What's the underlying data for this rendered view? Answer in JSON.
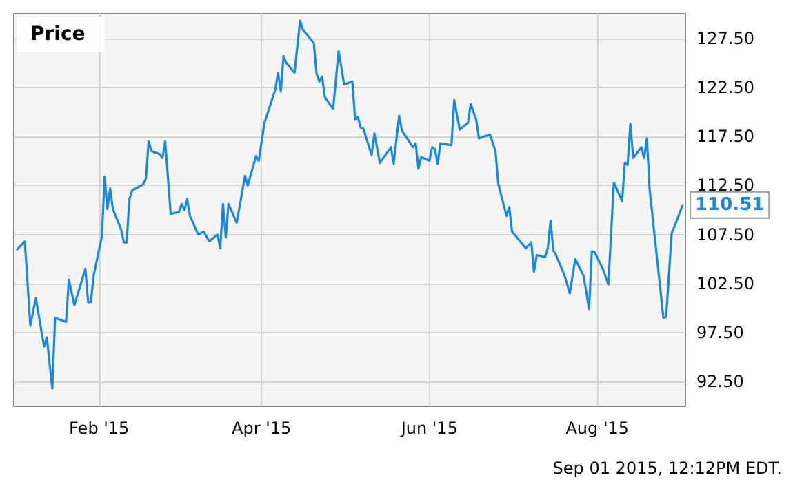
{
  "chart_data": {
    "type": "line",
    "title": "Price",
    "annotations": [
      "Sep 01 2015, 12:12PM EDT."
    ],
    "x": [
      "2015-01-02",
      "2015-01-05",
      "2015-01-07",
      "2015-01-09",
      "2015-01-12",
      "2015-01-13",
      "2015-01-15",
      "2015-01-16",
      "2015-01-20",
      "2015-01-21",
      "2015-01-23",
      "2015-01-27",
      "2015-01-28",
      "2015-01-29",
      "2015-01-30",
      "2015-02-02",
      "2015-02-03",
      "2015-02-04",
      "2015-02-05",
      "2015-02-06",
      "2015-02-09",
      "2015-02-10",
      "2015-02-11",
      "2015-02-12",
      "2015-02-13",
      "2015-02-17",
      "2015-02-18",
      "2015-02-19",
      "2015-02-20",
      "2015-02-23",
      "2015-02-24",
      "2015-02-25",
      "2015-02-27",
      "2015-03-02",
      "2015-03-03",
      "2015-03-04",
      "2015-03-05",
      "2015-03-06",
      "2015-03-09",
      "2015-03-11",
      "2015-03-13",
      "2015-03-16",
      "2015-03-17",
      "2015-03-18",
      "2015-03-19",
      "2015-03-20",
      "2015-03-23",
      "2015-03-26",
      "2015-03-27",
      "2015-03-30",
      "2015-03-31",
      "2015-04-02",
      "2015-04-06",
      "2015-04-07",
      "2015-04-08",
      "2015-04-09",
      "2015-04-10",
      "2015-04-13",
      "2015-04-15",
      "2015-04-16",
      "2015-04-20",
      "2015-04-21",
      "2015-04-22",
      "2015-04-23",
      "2015-04-24",
      "2015-04-27",
      "2015-04-29",
      "2015-05-01",
      "2015-05-04",
      "2015-05-05",
      "2015-05-06",
      "2015-05-07",
      "2015-05-08",
      "2015-05-11",
      "2015-05-12",
      "2015-05-14",
      "2015-05-18",
      "2015-05-19",
      "2015-05-21",
      "2015-05-22",
      "2015-05-26",
      "2015-05-27",
      "2015-05-28",
      "2015-05-29",
      "2015-06-01",
      "2015-06-02",
      "2015-06-03",
      "2015-06-04",
      "2015-06-05",
      "2015-06-09",
      "2015-06-10",
      "2015-06-12",
      "2015-06-15",
      "2015-06-16",
      "2015-06-18",
      "2015-06-19",
      "2015-06-23",
      "2015-06-25",
      "2015-06-26",
      "2015-06-29",
      "2015-06-30",
      "2015-07-01",
      "2015-07-06",
      "2015-07-08",
      "2015-07-09",
      "2015-07-10",
      "2015-07-13",
      "2015-07-14",
      "2015-07-15",
      "2015-07-16",
      "2015-07-17",
      "2015-07-20",
      "2015-07-22",
      "2015-07-23",
      "2015-07-24",
      "2015-07-27",
      "2015-07-29",
      "2015-07-30",
      "2015-07-31",
      "2015-08-03",
      "2015-08-05",
      "2015-08-07",
      "2015-08-10",
      "2015-08-11",
      "2015-08-12",
      "2015-08-13",
      "2015-08-14",
      "2015-08-17",
      "2015-08-18",
      "2015-08-19",
      "2015-08-20",
      "2015-08-25",
      "2015-08-26",
      "2015-08-28",
      "2015-09-01"
    ],
    "series": [
      {
        "color": "#1a88e0",
        "values": [
          105.9,
          106.8,
          98.2,
          101.0,
          96.1,
          97.0,
          91.8,
          99.0,
          98.6,
          102.9,
          100.3,
          104.0,
          100.6,
          100.6,
          103.3,
          107.3,
          113.4,
          110.1,
          112.2,
          110.1,
          108.0,
          106.7,
          106.7,
          111.1,
          112.0,
          112.6,
          113.2,
          117.0,
          116.0,
          115.7,
          115.3,
          117.0,
          109.6,
          109.8,
          110.6,
          110.0,
          111.1,
          109.4,
          107.5,
          107.8,
          106.8,
          107.5,
          106.1,
          110.6,
          107.2,
          110.6,
          108.7,
          113.5,
          112.5,
          115.5,
          115.0,
          118.8,
          122.3,
          124.0,
          122.1,
          125.7,
          125.0,
          124.0,
          129.3,
          128.4,
          127.0,
          123.9,
          123.1,
          123.6,
          121.5,
          120.3,
          126.2,
          122.8,
          123.1,
          119.2,
          119.5,
          118.4,
          118.3,
          115.6,
          117.8,
          114.8,
          116.4,
          114.7,
          119.6,
          118.1,
          116.4,
          116.8,
          114.2,
          115.4,
          115.0,
          116.4,
          116.2,
          114.7,
          116.8,
          116.6,
          121.2,
          118.2,
          118.9,
          120.8,
          119.2,
          117.3,
          117.7,
          116.0,
          112.7,
          109.4,
          110.3,
          107.8,
          106.1,
          106.7,
          103.7,
          105.4,
          105.2,
          106.1,
          108.9,
          105.9,
          105.4,
          103.4,
          101.5,
          103.3,
          105.0,
          103.3,
          99.9,
          105.8,
          105.7,
          104.0,
          102.4,
          112.8,
          110.9,
          114.8,
          114.6,
          118.8,
          115.3,
          116.4,
          115.3,
          117.3,
          112.1,
          99.0,
          99.1,
          107.6,
          110.51
        ],
        "value_labels": [
          null,
          null,
          null,
          null,
          null,
          null,
          null,
          null,
          null,
          null,
          null,
          null,
          null,
          null,
          null,
          null,
          null,
          null,
          null,
          null,
          null,
          null,
          null,
          null,
          null,
          null,
          null,
          null,
          null,
          null,
          null,
          null,
          null,
          null,
          null,
          null,
          null,
          null,
          null,
          null,
          null,
          null,
          null,
          null,
          null,
          null,
          null,
          null,
          null,
          null,
          null,
          null,
          null,
          null,
          null,
          null,
          null,
          null,
          null,
          null,
          null,
          null,
          null,
          null,
          null,
          null,
          null,
          null,
          null,
          null,
          null,
          null,
          null,
          null,
          null,
          null,
          null,
          null,
          null,
          null,
          null,
          null,
          null,
          null,
          null,
          null,
          null,
          null,
          null,
          null,
          null,
          null,
          null,
          null,
          null,
          null,
          null,
          null,
          null,
          null,
          null,
          null,
          null,
          null,
          null,
          null,
          null,
          null,
          null,
          null,
          null,
          null,
          null,
          null,
          null,
          null,
          null,
          null,
          null,
          null,
          null,
          null,
          null,
          null,
          null,
          null,
          null,
          null,
          null,
          null,
          null,
          null,
          null,
          null,
          "110.51"
        ]
      }
    ],
    "xlim": [
      "2015-01-01",
      "2015-09-02"
    ],
    "xticks": [
      {
        "value": "2015-02-01",
        "label": "Feb '15"
      },
      {
        "value": "2015-04-01",
        "label": "Apr '15"
      },
      {
        "value": "2015-06-01",
        "label": "Jun '15"
      },
      {
        "value": "2015-08-01",
        "label": "Aug '15"
      }
    ],
    "ylim": [
      90,
      130
    ],
    "yticks": [
      {
        "value": 92.5,
        "label": "92.50"
      },
      {
        "value": 97.5,
        "label": "97.50"
      },
      {
        "value": 102.5,
        "label": "102.50"
      },
      {
        "value": 107.5,
        "label": "107.50"
      },
      {
        "value": 112.5,
        "label": "112.50"
      },
      {
        "value": 117.5,
        "label": "117.50"
      },
      {
        "value": 122.5,
        "label": "122.50"
      },
      {
        "value": 127.5,
        "label": "127.50"
      }
    ],
    "grid": true,
    "marker": "none",
    "line_style": "solid"
  }
}
